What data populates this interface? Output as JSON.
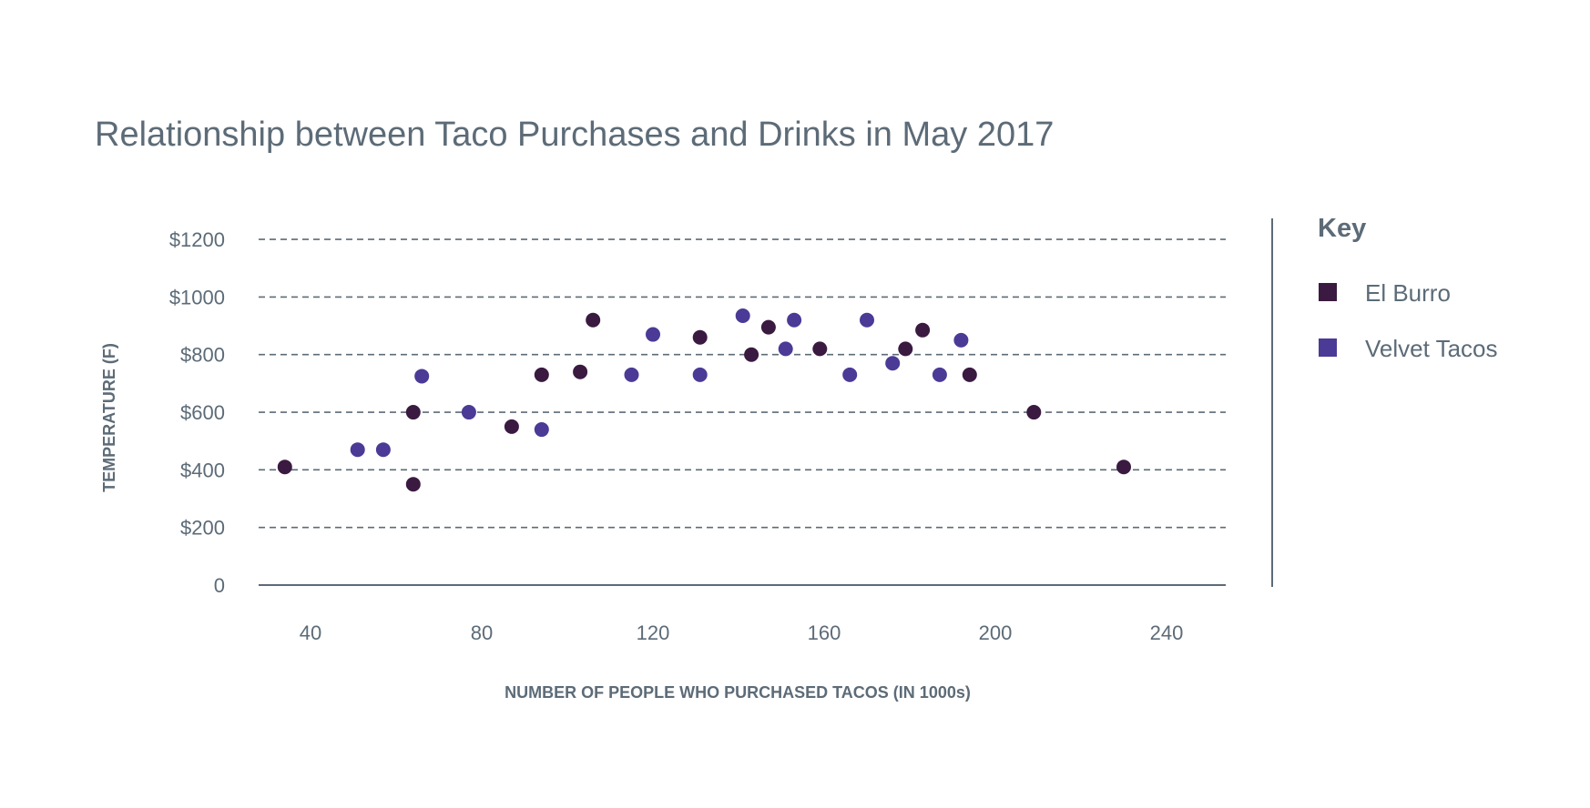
{
  "chart_data": {
    "type": "scatter",
    "title": "Relationship between Taco Purchases and Drinks in May 2017",
    "xlabel": "NUMBER OF PEOPLE WHO PURCHASED TACOS (IN 1000s)",
    "ylabel": "TEMPERATURE (F)",
    "x_ticks": [
      40,
      80,
      120,
      160,
      200,
      240
    ],
    "x_tick_labels": [
      "40",
      "80",
      "120",
      "160",
      "200",
      "240"
    ],
    "y_ticks": [
      0,
      200,
      400,
      600,
      800,
      1000,
      1200
    ],
    "y_tick_labels": [
      "0",
      "$200",
      "$400",
      "$600",
      "$800",
      "$1000",
      "$1200"
    ],
    "grid": true,
    "legend": {
      "title": "Key",
      "position": "right"
    },
    "series": [
      {
        "name": "El Burro",
        "color": "#3a1a40",
        "points": [
          [
            34,
            410
          ],
          [
            64,
            600
          ],
          [
            64,
            350
          ],
          [
            87,
            550
          ],
          [
            94,
            730
          ],
          [
            103,
            740
          ],
          [
            106,
            920
          ],
          [
            131,
            860
          ],
          [
            143,
            800
          ],
          [
            147,
            895
          ],
          [
            159,
            820
          ],
          [
            179,
            820
          ],
          [
            183,
            885
          ],
          [
            194,
            730
          ],
          [
            209,
            600
          ],
          [
            230,
            410
          ]
        ]
      },
      {
        "name": "Velvet Tacos",
        "color": "#4b3a96",
        "points": [
          [
            51,
            470
          ],
          [
            57,
            470
          ],
          [
            66,
            725
          ],
          [
            77,
            600
          ],
          [
            94,
            540
          ],
          [
            115,
            730
          ],
          [
            120,
            870
          ],
          [
            131,
            730
          ],
          [
            141,
            935
          ],
          [
            151,
            820
          ],
          [
            153,
            920
          ],
          [
            166,
            730
          ],
          [
            170,
            920
          ],
          [
            176,
            770
          ],
          [
            187,
            730
          ],
          [
            192,
            850
          ]
        ]
      }
    ]
  }
}
